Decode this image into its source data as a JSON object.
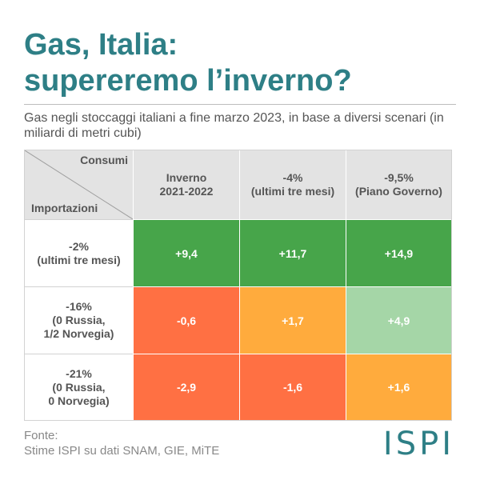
{
  "title": {
    "line1": "Gas, Italia:",
    "line2": "supereremo l’inverno?"
  },
  "subtitle": "Gas negli stoccaggi italiani a fine marzo 2023, in base a diversi scenari (in miliardi di metri cubi)",
  "source": {
    "label": "Fonte:",
    "text": "Stime ISPI su dati SNAM, GIE, MiTE"
  },
  "logo": "ISPI",
  "colors": {
    "title": "#2e7f86",
    "dark_green": "#47a54a",
    "light_green": "#a5d6a7",
    "orange": "#ffab3d",
    "red": "#ff7043",
    "header_bg": "#e3e3e3"
  },
  "chart_data": {
    "type": "table",
    "corner": {
      "column_axis_label": "Consumi",
      "row_axis_label": "Importazioni"
    },
    "columns": [
      {
        "line1": "Inverno",
        "line2": "2021-2022"
      },
      {
        "line1": "-4%",
        "line2": "(ultimi tre mesi)"
      },
      {
        "line1": "-9,5%",
        "line2": "(Piano Governo)"
      }
    ],
    "rows": [
      {
        "lines": [
          "-2%",
          "(ultimi tre mesi)"
        ]
      },
      {
        "lines": [
          "-16%",
          "(0 Russia,",
          "1/2 Norvegia)"
        ]
      },
      {
        "lines": [
          "-21%",
          "(0 Russia,",
          "0 Norvegia)"
        ]
      }
    ],
    "values": [
      [
        9.4,
        11.7,
        14.9
      ],
      [
        -0.6,
        1.7,
        4.9
      ],
      [
        -2.9,
        -1.6,
        1.6
      ]
    ],
    "labels": [
      [
        "+9,4",
        "+11,7",
        "+14,9"
      ],
      [
        "-0,6",
        "+1,7",
        "+4,9"
      ],
      [
        "-2,9",
        "-1,6",
        "+1,6"
      ]
    ],
    "cell_colors": [
      [
        "dark_green",
        "dark_green",
        "dark_green"
      ],
      [
        "red",
        "orange",
        "light_green"
      ],
      [
        "red",
        "red",
        "orange"
      ]
    ]
  }
}
